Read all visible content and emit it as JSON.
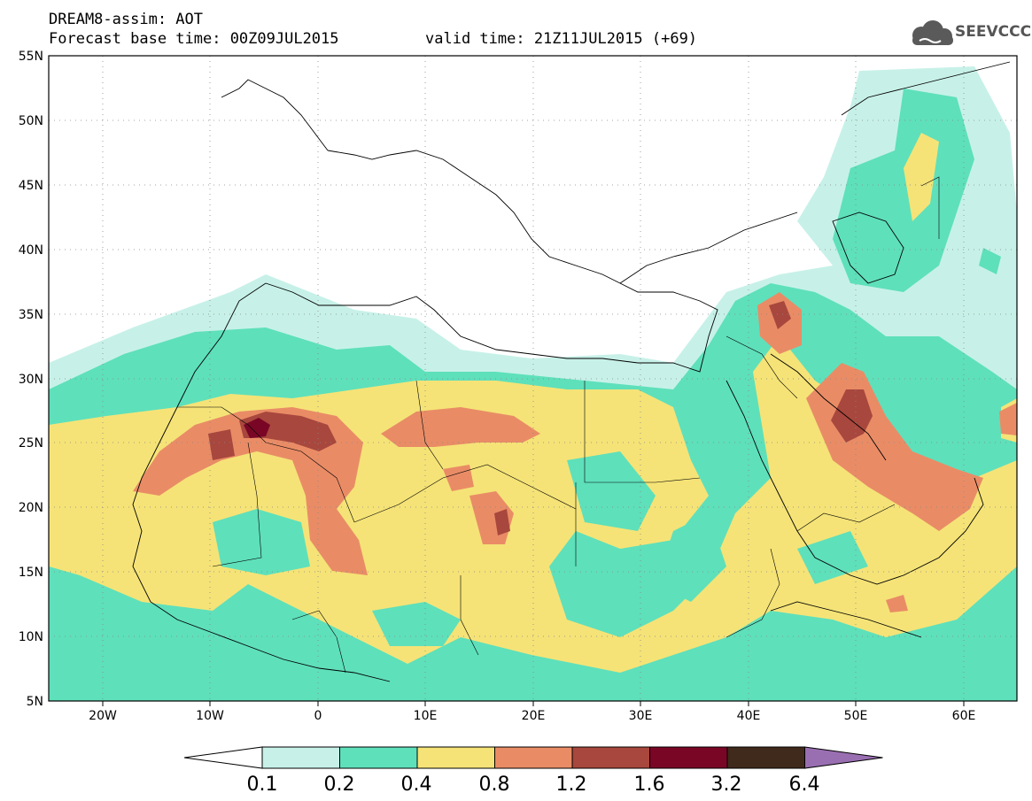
{
  "header": {
    "line1": "DREAM8-assim: AOT",
    "line2": "Forecast base time: 00Z09JUL2015",
    "valid": "valid time: 21Z11JUL2015 (+69)",
    "logo_text": "SEEVCCC",
    "logo_icon": "cloud-icon"
  },
  "axes": {
    "lon_ticks": [
      "20W",
      "10W",
      "0",
      "10E",
      "20E",
      "30E",
      "40E",
      "50E",
      "60E"
    ],
    "lat_ticks": [
      "55N",
      "50N",
      "45N",
      "40N",
      "35N",
      "30N",
      "25N",
      "20N",
      "15N",
      "10N",
      "5N"
    ],
    "lon_range": [
      -25,
      65
    ],
    "lat_range": [
      5,
      55
    ],
    "grid": "dotted"
  },
  "colorbar": {
    "labels": [
      "0.1",
      "0.2",
      "0.4",
      "0.8",
      "1.2",
      "1.6",
      "3.2",
      "6.4"
    ],
    "colors": [
      "#ffffff",
      "#c7f1e8",
      "#5ee0bb",
      "#f5e377",
      "#e98c66",
      "#a8473d",
      "#7a0626",
      "#402a1c",
      "#9a6fb2"
    ]
  }
}
